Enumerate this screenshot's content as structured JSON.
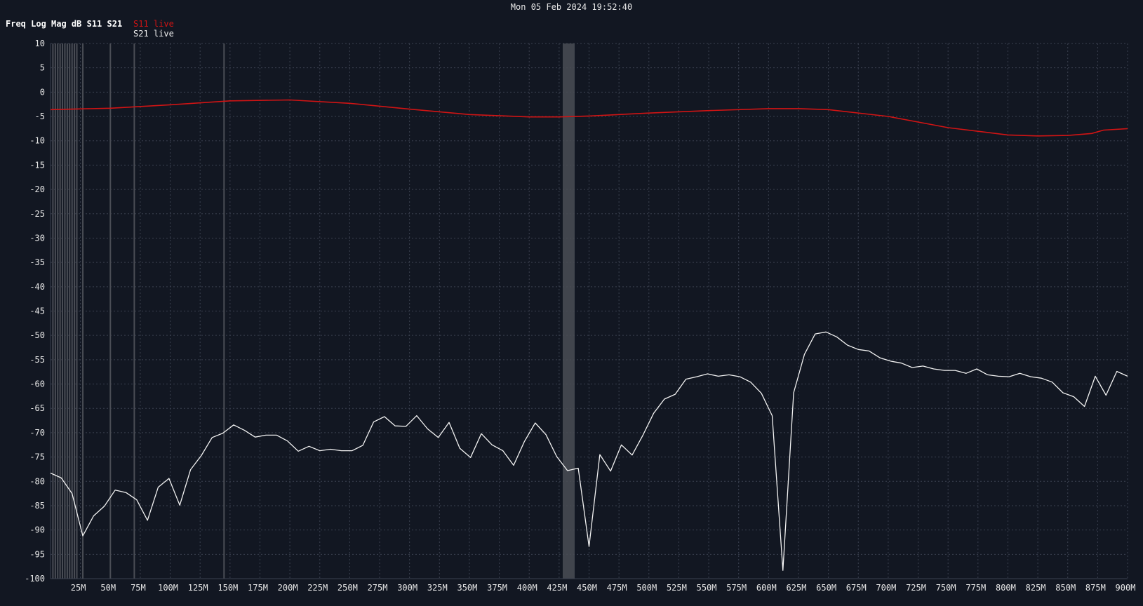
{
  "header": {
    "timestamp": "Mon 05 Feb 2024 19:52:40",
    "title": "Freq Log Mag dB S11 S21"
  },
  "colors": {
    "background": "#121722",
    "grid": "#3b4150",
    "s11": "#d11414",
    "s21": "#f2f2f2",
    "marker": "#4a4d55",
    "text": "#e8e8e8"
  },
  "chart_data": {
    "type": "line",
    "title": "Freq Log Mag dB S11 S21",
    "xlabel": "",
    "ylabel": "",
    "xlim": [
      0,
      900
    ],
    "ylim": [
      -100,
      10
    ],
    "grid": true,
    "legend": "top-left",
    "x_ticks": [
      25,
      50,
      75,
      100,
      125,
      150,
      175,
      200,
      225,
      250,
      275,
      300,
      325,
      350,
      375,
      400,
      425,
      450,
      475,
      500,
      525,
      550,
      575,
      600,
      625,
      650,
      675,
      700,
      725,
      750,
      775,
      800,
      825,
      850,
      875,
      900
    ],
    "x_tick_labels": [
      "25M",
      "50M",
      "75M",
      "100M",
      "125M",
      "150M",
      "175M",
      "200M",
      "225M",
      "250M",
      "275M",
      "300M",
      "325M",
      "350M",
      "375M",
      "400M",
      "425M",
      "450M",
      "475M",
      "500M",
      "525M",
      "550M",
      "575M",
      "600M",
      "625M",
      "650M",
      "675M",
      "700M",
      "725M",
      "750M",
      "775M",
      "800M",
      "825M",
      "850M",
      "875M",
      "900M"
    ],
    "y_ticks": [
      10,
      5,
      0,
      -5,
      -10,
      -15,
      -20,
      -25,
      -30,
      -35,
      -40,
      -45,
      -50,
      -55,
      -60,
      -65,
      -70,
      -75,
      -80,
      -85,
      -90,
      -95,
      -100
    ],
    "y_tick_labels": [
      "10",
      "5",
      "0",
      "-5",
      "-10",
      "-15",
      "-20",
      "-25",
      "-30",
      "-35",
      "-40",
      "-45",
      "-50",
      "-55",
      "-60",
      "-65",
      "-70",
      "-75",
      "-80",
      "-85",
      "-90",
      "-95",
      "-100"
    ],
    "marker_lines": [
      2,
      4,
      6,
      8,
      10,
      12,
      14,
      16,
      18,
      20,
      22,
      27,
      50,
      70,
      145
    ],
    "marker_band": [
      428,
      438
    ],
    "series": [
      {
        "name": "S11 live",
        "color": "#d11414",
        "x": [
          0,
          50,
          100,
          150,
          200,
          250,
          300,
          350,
          400,
          425,
          450,
          500,
          550,
          600,
          625,
          650,
          700,
          750,
          800,
          825,
          850,
          870,
          880,
          900
        ],
        "y": [
          -3.6,
          -3.3,
          -2.6,
          -1.8,
          -1.6,
          -2.3,
          -3.5,
          -4.6,
          -5.1,
          -5.1,
          -4.9,
          -4.3,
          -3.8,
          -3.4,
          -3.4,
          -3.6,
          -5.0,
          -7.3,
          -8.8,
          -9.0,
          -8.9,
          -8.5,
          -7.8,
          -7.5
        ]
      },
      {
        "name": "S21 live",
        "color": "#f2f2f2",
        "x": [
          0,
          9,
          18,
          27,
          36,
          45,
          54,
          63,
          72,
          81,
          90,
          99,
          108,
          117,
          126,
          135,
          144,
          153,
          162,
          171,
          180,
          189,
          198,
          207,
          216,
          225,
          234,
          243,
          252,
          261,
          270,
          279,
          288,
          297,
          306,
          315,
          324,
          333,
          342,
          351,
          360,
          369,
          378,
          387,
          396,
          405,
          414,
          423,
          432,
          441,
          450,
          459,
          468,
          477,
          486,
          495,
          504,
          513,
          522,
          531,
          540,
          549,
          558,
          567,
          576,
          585,
          594,
          603,
          612,
          621,
          630,
          639,
          648,
          657,
          666,
          675,
          684,
          693,
          702,
          711,
          720,
          729,
          738,
          747,
          756,
          765,
          774,
          783,
          792,
          801,
          810,
          819,
          828,
          837,
          846,
          855,
          864,
          873,
          882,
          891,
          900
        ],
        "y": [
          -78.3,
          -79.3,
          -82.5,
          -91.2,
          -87.1,
          -85.1,
          -81.8,
          -82.3,
          -83.8,
          -88.0,
          -81.2,
          -79.4,
          -84.9,
          -77.6,
          -74.7,
          -71.0,
          -70.1,
          -68.4,
          -69.5,
          -70.9,
          -70.5,
          -70.5,
          -71.7,
          -73.8,
          -72.8,
          -73.7,
          -73.4,
          -73.7,
          -73.7,
          -72.6,
          -67.8,
          -66.7,
          -68.6,
          -68.7,
          -66.5,
          -69.2,
          -71.0,
          -67.9,
          -73.2,
          -75.1,
          -70.2,
          -72.5,
          -73.7,
          -76.7,
          -71.8,
          -68.0,
          -70.4,
          -74.9,
          -77.8,
          -77.3,
          -93.4,
          -74.5,
          -77.9,
          -72.5,
          -74.6,
          -70.5,
          -66.0,
          -63.1,
          -62.1,
          -59.0,
          -58.5,
          -57.9,
          -58.4,
          -58.1,
          -58.5,
          -59.6,
          -61.9,
          -66.5,
          -98.3,
          -61.8,
          -53.9,
          -49.7,
          -49.3,
          -50.3,
          -52.0,
          -52.9,
          -53.2,
          -54.6,
          -55.3,
          -55.7,
          -56.6,
          -56.3,
          -56.9,
          -57.2,
          -57.2,
          -57.8,
          -56.9,
          -58.1,
          -58.4,
          -58.5,
          -57.8,
          -58.5,
          -58.8,
          -59.6,
          -61.8,
          -62.6,
          -64.6,
          -58.4,
          -62.3,
          -57.4,
          -58.4
        ]
      }
    ]
  }
}
